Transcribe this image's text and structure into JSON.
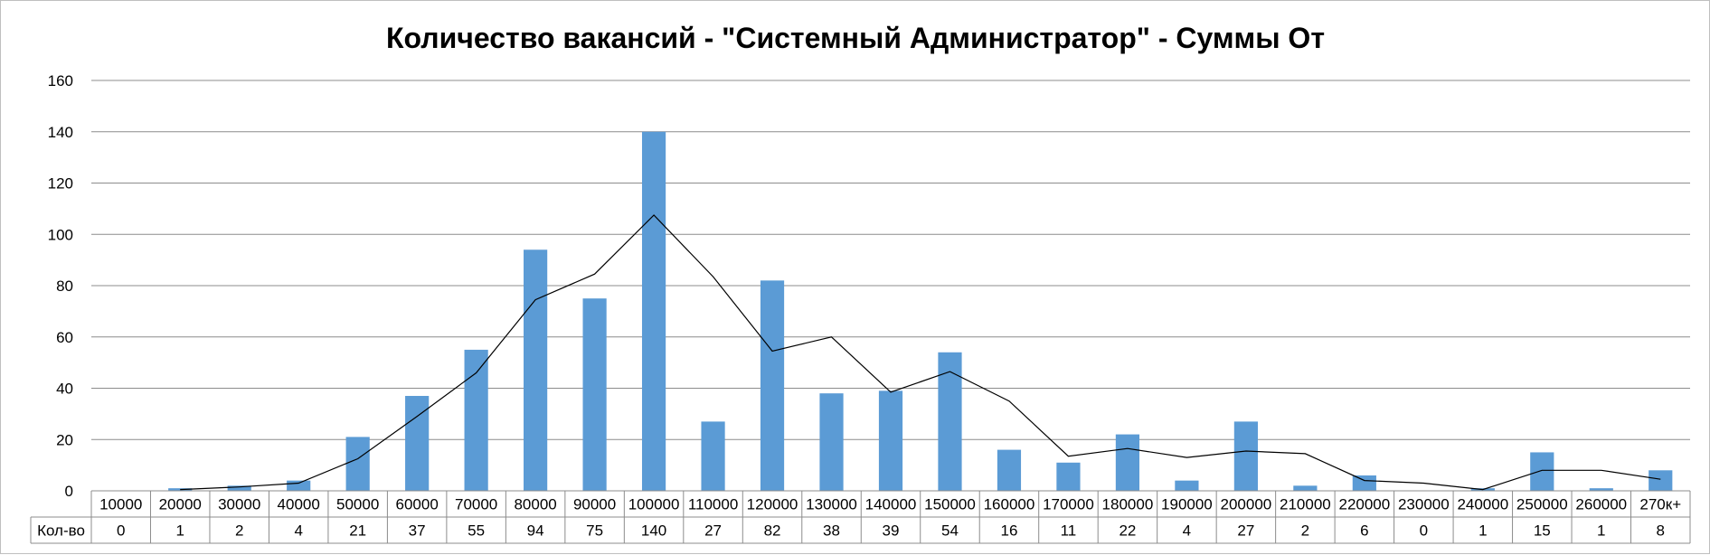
{
  "chart_data": {
    "type": "bar",
    "title": "Количество вакансий - \"Системный Администратор\" - Суммы От",
    "categories": [
      "10000",
      "20000",
      "30000",
      "40000",
      "50000",
      "60000",
      "70000",
      "80000",
      "90000",
      "100000",
      "110000",
      "120000",
      "130000",
      "140000",
      "150000",
      "160000",
      "170000",
      "180000",
      "190000",
      "200000",
      "210000",
      "220000",
      "230000",
      "240000",
      "250000",
      "260000",
      "270к+"
    ],
    "series": [
      {
        "name": "Кол-во",
        "color": "#5b9bd5",
        "values": [
          0,
          1,
          2,
          4,
          21,
          37,
          55,
          94,
          75,
          140,
          27,
          82,
          38,
          39,
          54,
          16,
          11,
          22,
          4,
          27,
          2,
          6,
          0,
          1,
          15,
          1,
          8
        ]
      }
    ],
    "trendline": {
      "type": "moving-average",
      "color": "#000000",
      "values": [
        null,
        0.5,
        1.5,
        3,
        12.5,
        29,
        46,
        74.5,
        84.5,
        107.5,
        83.5,
        54.5,
        60,
        38.5,
        46.5,
        35,
        13.5,
        16.5,
        13,
        15.5,
        14.5,
        4,
        3,
        0.5,
        8,
        8,
        4.5
      ]
    },
    "ylim": [
      0,
      160
    ],
    "yticks": [
      0,
      20,
      40,
      60,
      80,
      100,
      120,
      140,
      160
    ],
    "grid": true,
    "data_table": true
  }
}
